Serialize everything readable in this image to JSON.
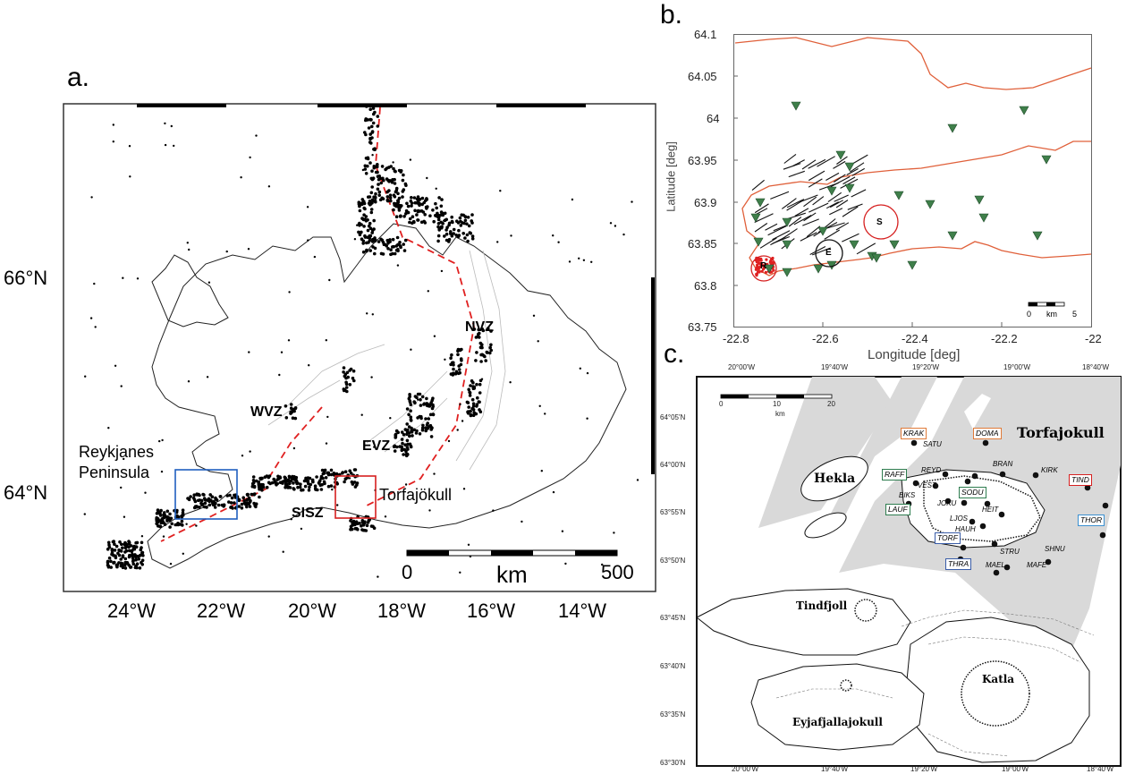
{
  "panel_a": {
    "label": "a.",
    "lat_labels": [
      "66°N",
      "64°N"
    ],
    "lon_labels": [
      "24°W",
      "22°W",
      "20°W",
      "18°W",
      "16°W",
      "14°W"
    ],
    "regions": {
      "reykjanes_line1": "Reykjanes",
      "reykjanes_line2": "Peninsula",
      "torfajokull": "Torfajökull",
      "wvz": "WVZ",
      "evz": "EVZ",
      "nvz": "NVZ",
      "sisz": "SISZ"
    },
    "scalebar": {
      "start": "0",
      "unit": "km",
      "end": "500"
    },
    "colors": {
      "reykjanes_box": "#1f5fbf",
      "torfajokull_box": "#d62020",
      "rift_line": "#e02020",
      "seismicity": "#000000"
    }
  },
  "panel_b": {
    "label": "b.",
    "xlabel": "Longitude [deg]",
    "ylabel": "Latitude [deg]",
    "x_ticks": [
      "-22.8",
      "-22.6",
      "-22.4",
      "-22.2",
      "-22"
    ],
    "y_ticks": [
      "64.1",
      "64.05",
      "64",
      "63.95",
      "63.9",
      "63.85",
      "63.8",
      "63.75"
    ],
    "circle_labels": {
      "s": "S",
      "e": "E",
      "r": "R"
    },
    "scalebar": {
      "start": "0",
      "unit": "km",
      "end": "5"
    },
    "colors": {
      "coastline": "#e0603a",
      "stations": "#3f7f4a",
      "seismicity": "#e02020"
    }
  },
  "panel_c": {
    "label": "c.",
    "top_lon": [
      "20°00'W",
      "19°40'W",
      "19°20'W",
      "19°00'W",
      "18°40'W"
    ],
    "bottom_lon": [
      "20°00'W",
      "19°40'W",
      "19°20'W",
      "19°00'W",
      "18°40'W"
    ],
    "lat": [
      "64°05'N",
      "64°00'N",
      "63°55'N",
      "63°50'N",
      "63°45'N",
      "63°40'N",
      "63°35'N",
      "63°30'N"
    ],
    "scalebar": {
      "t0": "0",
      "t1": "10",
      "t2": "20",
      "unit": "km"
    },
    "volcanoes": {
      "torfajokull": "Torfajokull",
      "hekla": "Hekla",
      "tindfjoll": "Tindfjoll",
      "katla": "Katla",
      "eyjafjallajokull": "Eyjafjallajokull"
    },
    "boxed_stations": {
      "krak": "KRAK",
      "doma": "DOMA",
      "raff": "RAFF",
      "sodu": "SODU",
      "lauf": "LAUF",
      "torf": "TORF",
      "thra": "THRA",
      "tind": "TIND",
      "thor": "THOR"
    },
    "stations": {
      "satu": "SATU",
      "reyd": "REYD",
      "vest": "VEST",
      "biks": "BIKS",
      "joku": "JOKU",
      "bran": "BRAN",
      "kirk": "KIRK",
      "heit": "HEIT",
      "ljos": "LJOS",
      "hauh": "HAUH",
      "stru": "STRU",
      "mael": "MAEL",
      "mafe": "MAFE",
      "shnu": "SHNU"
    },
    "colors": {
      "orange": "#e07b39",
      "green": "#2e7d4f",
      "blue": "#3a5da8",
      "red": "#d62020",
      "cyan": "#3a8fd0",
      "zone": "#d9d9d9"
    }
  }
}
